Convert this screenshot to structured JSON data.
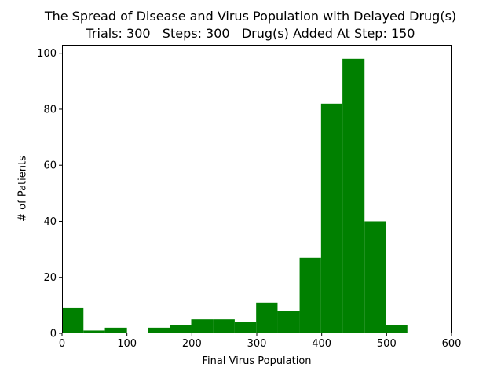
{
  "chart_data": {
    "type": "bar",
    "title": [
      "The Spread of Disease and Virus Population with Delayed Drug(s)",
      "Trials: 300   Steps: 300   Drug(s) Added At Step: 150"
    ],
    "xlabel": "Final Virus Population",
    "ylabel": "# of Patients",
    "xlim": [
      0,
      600
    ],
    "ylim": [
      0,
      103
    ],
    "xticks": [
      0,
      100,
      200,
      300,
      400,
      500,
      600
    ],
    "yticks": [
      0,
      20,
      40,
      60,
      80,
      100
    ],
    "bar_color": "#008000",
    "bins": [
      {
        "x0": 0,
        "x1": 33,
        "value": 9
      },
      {
        "x0": 33,
        "x1": 66,
        "value": 1
      },
      {
        "x0": 66,
        "x1": 100,
        "value": 2
      },
      {
        "x0": 100,
        "x1": 133,
        "value": 0
      },
      {
        "x0": 133,
        "x1": 166,
        "value": 2
      },
      {
        "x0": 166,
        "x1": 199,
        "value": 3
      },
      {
        "x0": 199,
        "x1": 233,
        "value": 5
      },
      {
        "x0": 233,
        "x1": 266,
        "value": 5
      },
      {
        "x0": 266,
        "x1": 299,
        "value": 4
      },
      {
        "x0": 299,
        "x1": 332,
        "value": 11
      },
      {
        "x0": 332,
        "x1": 366,
        "value": 8
      },
      {
        "x0": 366,
        "x1": 399,
        "value": 27
      },
      {
        "x0": 399,
        "x1": 432,
        "value": 82
      },
      {
        "x0": 432,
        "x1": 466,
        "value": 98
      },
      {
        "x0": 466,
        "x1": 499,
        "value": 40
      },
      {
        "x0": 499,
        "x1": 532,
        "value": 3
      }
    ]
  }
}
